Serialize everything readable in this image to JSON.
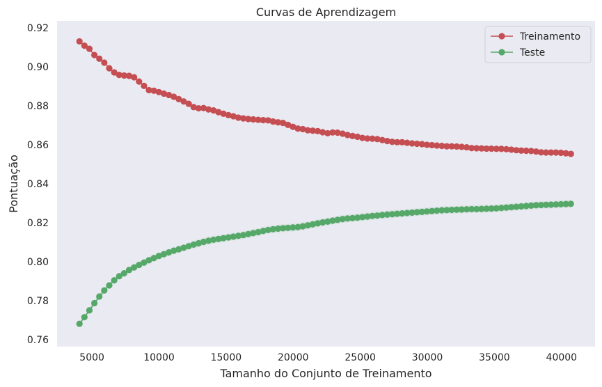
{
  "chart_data": {
    "type": "line",
    "title": "Curvas de Aprendizagem",
    "xlabel": "Tamanho do Conjunto de Treinamento",
    "ylabel": "Pontuação",
    "xlim": [
      2400,
      42500
    ],
    "ylim": [
      0.7565,
      0.9235
    ],
    "xticks": [
      5000,
      10000,
      15000,
      20000,
      25000,
      30000,
      35000,
      40000
    ],
    "xtick_labels": [
      "5000",
      "10000",
      "15000",
      "20000",
      "25000",
      "30000",
      "35000",
      "40000"
    ],
    "yticks": [
      0.76,
      0.78,
      0.8,
      0.82,
      0.84,
      0.86,
      0.88,
      0.9,
      0.92
    ],
    "ytick_labels": [
      "0.76",
      "0.78",
      "0.80",
      "0.82",
      "0.84",
      "0.86",
      "0.88",
      "0.90",
      "0.92"
    ],
    "grid": false,
    "background": "#eaeaf2",
    "legend_position": "top-right",
    "x": [
      4070,
      4440,
      4810,
      5180,
      5550,
      5920,
      6290,
      6660,
      7030,
      7400,
      7770,
      8140,
      8510,
      8880,
      9250,
      9620,
      9990,
      10360,
      10730,
      11100,
      11470,
      11840,
      12210,
      12580,
      12950,
      13320,
      13690,
      14060,
      14430,
      14800,
      15170,
      15540,
      15910,
      16280,
      16650,
      17020,
      17390,
      17760,
      18130,
      18500,
      18870,
      19240,
      19610,
      19980,
      20350,
      20720,
      21090,
      21460,
      21830,
      22200,
      22570,
      22940,
      23310,
      23680,
      24050,
      24420,
      24790,
      25160,
      25530,
      25900,
      26270,
      26640,
      27010,
      27380,
      27750,
      28120,
      28490,
      28860,
      29230,
      29600,
      29970,
      30340,
      30710,
      31080,
      31450,
      31820,
      32190,
      32560,
      32930,
      33300,
      33670,
      34040,
      34410,
      34780,
      35150,
      35520,
      35890,
      36260,
      36630,
      37000,
      37370,
      37740,
      38110,
      38480,
      38850,
      39220,
      39590,
      39960,
      40330,
      40700
    ],
    "series": [
      {
        "name": "Treinamento",
        "color": "#c44e52",
        "values": [
          0.913,
          0.9108,
          0.9092,
          0.906,
          0.9041,
          0.9021,
          0.8992,
          0.8971,
          0.8958,
          0.8955,
          0.8953,
          0.8946,
          0.8924,
          0.8902,
          0.888,
          0.8877,
          0.887,
          0.8862,
          0.8855,
          0.8846,
          0.8834,
          0.8822,
          0.881,
          0.8793,
          0.8787,
          0.8788,
          0.8781,
          0.8776,
          0.8767,
          0.8759,
          0.8752,
          0.8746,
          0.8739,
          0.8735,
          0.8732,
          0.873,
          0.8728,
          0.8726,
          0.8725,
          0.8719,
          0.8715,
          0.8712,
          0.8702,
          0.8692,
          0.8683,
          0.868,
          0.8674,
          0.8672,
          0.867,
          0.8664,
          0.8659,
          0.8663,
          0.8662,
          0.8657,
          0.865,
          0.8645,
          0.8641,
          0.8635,
          0.8632,
          0.8631,
          0.8629,
          0.8624,
          0.8619,
          0.8615,
          0.8613,
          0.8613,
          0.861,
          0.8607,
          0.8605,
          0.8603,
          0.86,
          0.8598,
          0.8596,
          0.8594,
          0.8592,
          0.8592,
          0.8591,
          0.8589,
          0.8587,
          0.8583,
          0.8582,
          0.8581,
          0.858,
          0.858,
          0.8579,
          0.8579,
          0.8577,
          0.8575,
          0.8572,
          0.857,
          0.8569,
          0.8568,
          0.8565,
          0.8561,
          0.856,
          0.856,
          0.856,
          0.8559,
          0.8556,
          0.8553
        ],
        "band": [
          0.0004,
          0.0004,
          0.0004,
          0.0005,
          0.0005,
          0.0005,
          0.0005,
          0.0006,
          0.0006,
          0.0006,
          0.0007,
          0.0007,
          0.0007,
          0.0008,
          0.0008,
          0.0008,
          0.0009,
          0.0009,
          0.0009,
          0.001,
          0.001,
          0.001,
          0.0011,
          0.0011,
          0.0011,
          0.0012,
          0.0012,
          0.0012,
          0.0013,
          0.0013,
          0.0013,
          0.0014,
          0.0014,
          0.0014,
          0.0015,
          0.0015,
          0.0015,
          0.0016,
          0.0016,
          0.0016,
          0.0016,
          0.0016,
          0.0015,
          0.0015,
          0.0015,
          0.0014,
          0.0014,
          0.0013,
          0.0013,
          0.0012,
          0.0012,
          0.0012,
          0.0011,
          0.0011,
          0.001,
          0.001,
          0.001,
          0.0009,
          0.0009,
          0.0009,
          0.0008,
          0.0008,
          0.0008,
          0.0007,
          0.0007,
          0.0007,
          0.0007,
          0.0006,
          0.0006,
          0.0006,
          0.0006,
          0.0006,
          0.0006,
          0.0005,
          0.0005,
          0.0005,
          0.0005,
          0.0005,
          0.0005,
          0.0005,
          0.0005,
          0.0005,
          0.0005,
          0.0005,
          0.0005,
          0.0005,
          0.0005,
          0.0005,
          0.0005,
          0.0005,
          0.0005,
          0.0005,
          0.0005,
          0.0005,
          0.0005,
          0.0005,
          0.0005,
          0.0005,
          0.0005,
          0.0005
        ]
      },
      {
        "name": "Teste",
        "color": "#55a868",
        "values": [
          0.7682,
          0.7716,
          0.7751,
          0.7788,
          0.7822,
          0.7853,
          0.7879,
          0.7905,
          0.7926,
          0.7941,
          0.7958,
          0.7971,
          0.7984,
          0.7996,
          0.8008,
          0.8019,
          0.803,
          0.8039,
          0.8048,
          0.8057,
          0.8064,
          0.8072,
          0.808,
          0.8088,
          0.8095,
          0.8102,
          0.8108,
          0.8113,
          0.8117,
          0.8121,
          0.8125,
          0.8129,
          0.8133,
          0.8137,
          0.8142,
          0.8147,
          0.8152,
          0.8158,
          0.8163,
          0.8167,
          0.817,
          0.8172,
          0.8174,
          0.8176,
          0.8178,
          0.8182,
          0.8187,
          0.8192,
          0.8197,
          0.8202,
          0.8206,
          0.8211,
          0.8215,
          0.8219,
          0.8222,
          0.8224,
          0.8226,
          0.8229,
          0.8232,
          0.8235,
          0.8237,
          0.824,
          0.8242,
          0.8244,
          0.8246,
          0.8248,
          0.825,
          0.8252,
          0.8254,
          0.8256,
          0.8258,
          0.826,
          0.8262,
          0.8264,
          0.8265,
          0.8266,
          0.8267,
          0.8268,
          0.8269,
          0.827,
          0.827,
          0.8271,
          0.8272,
          0.8273,
          0.8274,
          0.8276,
          0.8278,
          0.828,
          0.8282,
          0.8284,
          0.8286,
          0.8288,
          0.829,
          0.8291,
          0.8292,
          0.8293,
          0.8294,
          0.8295,
          0.8296,
          0.8297
        ],
        "band": [
          0.0012,
          0.0012,
          0.0013,
          0.0013,
          0.0013,
          0.0014,
          0.0014,
          0.0014,
          0.0015,
          0.0015,
          0.0015,
          0.0016,
          0.0016,
          0.0016,
          0.0017,
          0.0017,
          0.0017,
          0.0018,
          0.0018,
          0.0018,
          0.0019,
          0.0019,
          0.0019,
          0.002,
          0.002,
          0.002,
          0.002,
          0.002,
          0.002,
          0.002,
          0.002,
          0.002,
          0.002,
          0.002,
          0.002,
          0.002,
          0.002,
          0.002,
          0.002,
          0.002,
          0.002,
          0.002,
          0.002,
          0.002,
          0.002,
          0.002,
          0.002,
          0.002,
          0.002,
          0.002,
          0.002,
          0.002,
          0.002,
          0.002,
          0.002,
          0.002,
          0.002,
          0.002,
          0.002,
          0.002,
          0.002,
          0.002,
          0.002,
          0.002,
          0.002,
          0.002,
          0.002,
          0.002,
          0.002,
          0.002,
          0.002,
          0.002,
          0.002,
          0.002,
          0.002,
          0.002,
          0.002,
          0.002,
          0.002,
          0.002,
          0.002,
          0.002,
          0.002,
          0.002,
          0.002,
          0.002,
          0.002,
          0.002,
          0.002,
          0.002,
          0.002,
          0.002,
          0.002,
          0.002,
          0.002,
          0.002,
          0.002,
          0.002,
          0.002,
          0.002
        ]
      }
    ]
  }
}
